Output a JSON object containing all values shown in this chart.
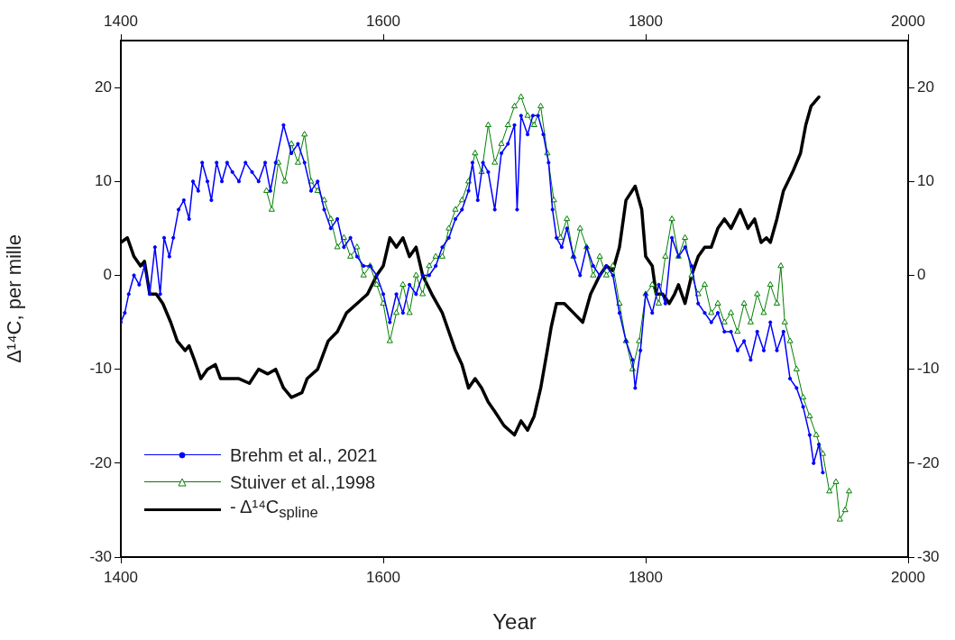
{
  "chart_data": {
    "type": "line",
    "xlabel": "Year",
    "ylabel": "Δ¹⁴C, per mille",
    "xlim": [
      1400,
      2000
    ],
    "xticks": [
      1400,
      1600,
      1800,
      2000
    ],
    "x2lim": [
      1400,
      2000
    ],
    "x2ticks": [
      1400,
      1600,
      1800,
      2000
    ],
    "ylim": [
      -30,
      25
    ],
    "yticks": [
      -30,
      -20,
      -10,
      0,
      10,
      20
    ],
    "y2lim": [
      -30,
      25
    ],
    "y2ticks": [
      -30,
      -20,
      -10,
      0,
      10,
      20
    ],
    "grid": false,
    "legend": "bottom left",
    "series": [
      {
        "name": "Brehm et al., 2021",
        "color": "#0000ff",
        "marker": "circle",
        "x": [
          1400,
          1403,
          1406,
          1410,
          1414,
          1418,
          1422,
          1426,
          1430,
          1433,
          1437,
          1440,
          1444,
          1448,
          1452,
          1455,
          1459,
          1462,
          1466,
          1469,
          1473,
          1477,
          1481,
          1485,
          1490,
          1495,
          1500,
          1505,
          1510,
          1514,
          1518,
          1524,
          1530,
          1535,
          1540,
          1545,
          1550,
          1555,
          1560,
          1565,
          1570,
          1575,
          1580,
          1585,
          1590,
          1595,
          1600,
          1605,
          1610,
          1615,
          1620,
          1625,
          1630,
          1635,
          1640,
          1645,
          1650,
          1655,
          1660,
          1665,
          1668,
          1672,
          1676,
          1680,
          1685,
          1690,
          1695,
          1700,
          1702,
          1705,
          1710,
          1714,
          1718,
          1722,
          1726,
          1729,
          1732,
          1736,
          1740,
          1745,
          1750,
          1755,
          1760,
          1765,
          1770,
          1775,
          1780,
          1785,
          1790,
          1792,
          1796,
          1800,
          1805,
          1810,
          1815,
          1820,
          1825,
          1830,
          1835,
          1840,
          1845,
          1850,
          1855,
          1860,
          1865,
          1870,
          1875,
          1880,
          1885,
          1890,
          1895,
          1900,
          1905,
          1910,
          1915,
          1920,
          1925,
          1928,
          1932,
          1935
        ],
        "values": [
          -5,
          -4,
          -2,
          0,
          -1,
          1,
          -2,
          3,
          -2,
          4,
          2,
          4,
          7,
          8,
          6,
          10,
          9,
          12,
          10,
          8,
          12,
          10,
          12,
          11,
          10,
          12,
          11,
          10,
          12,
          9,
          12,
          16,
          13,
          14,
          12,
          9,
          10,
          7,
          5,
          6,
          3,
          4,
          2,
          1,
          1,
          0,
          -2,
          -5,
          -2,
          -4,
          -1,
          -2,
          0,
          0,
          1,
          3,
          4,
          6,
          7,
          9,
          12,
          8,
          12,
          11,
          7,
          13,
          14,
          16,
          7,
          17,
          15,
          17,
          17,
          15,
          12,
          7,
          4,
          3,
          5,
          2,
          0,
          3,
          1,
          0,
          1,
          0,
          -4,
          -7,
          -9,
          -12,
          -8,
          -2,
          -4,
          -1,
          -3,
          4,
          2,
          3,
          1,
          -3,
          -4,
          -5,
          -4,
          -6,
          -6,
          -8,
          -7,
          -9,
          -6,
          -8,
          -5,
          -8,
          -6,
          -11,
          -12,
          -14,
          -17,
          -20,
          -18,
          -21
        ]
      },
      {
        "name": "Stuiver et al.,1998",
        "color": "#008000",
        "marker": "triangle",
        "x": [
          1511,
          1515,
          1520,
          1525,
          1530,
          1535,
          1540,
          1545,
          1550,
          1555,
          1560,
          1565,
          1570,
          1575,
          1580,
          1585,
          1590,
          1595,
          1600,
          1605,
          1610,
          1615,
          1620,
          1625,
          1630,
          1635,
          1640,
          1645,
          1650,
          1655,
          1660,
          1665,
          1670,
          1675,
          1680,
          1685,
          1690,
          1695,
          1700,
          1705,
          1710,
          1715,
          1720,
          1725,
          1730,
          1735,
          1740,
          1745,
          1750,
          1755,
          1760,
          1765,
          1770,
          1775,
          1780,
          1785,
          1790,
          1795,
          1800,
          1805,
          1810,
          1815,
          1820,
          1825,
          1830,
          1835,
          1840,
          1845,
          1850,
          1855,
          1860,
          1865,
          1870,
          1875,
          1880,
          1885,
          1890,
          1895,
          1900,
          1903,
          1906,
          1910,
          1915,
          1920,
          1925,
          1930,
          1935,
          1940,
          1945,
          1948,
          1952,
          1955
        ],
        "values": [
          9,
          7,
          12,
          10,
          14,
          12,
          15,
          10,
          9,
          8,
          6,
          3,
          4,
          2,
          3,
          0,
          1,
          -1,
          -3,
          -7,
          -4,
          -1,
          -4,
          0,
          -2,
          1,
          2,
          2,
          5,
          7,
          8,
          10,
          13,
          11,
          16,
          12,
          14,
          16,
          18,
          19,
          17,
          16,
          18,
          13,
          8,
          4,
          6,
          2,
          5,
          3,
          0,
          2,
          0,
          1,
          -3,
          -7,
          -10,
          -7,
          -2,
          -1,
          -3,
          2,
          6,
          2,
          4,
          0,
          -2,
          -1,
          -4,
          -3,
          -5,
          -4,
          -6,
          -3,
          -5,
          -2,
          -4,
          -1,
          -3,
          1,
          -5,
          -7,
          -10,
          -13,
          -15,
          -17,
          -19,
          -23,
          -22,
          -26,
          -25,
          -23
        ]
      },
      {
        "name": "- Δ¹⁴C$_{spline}$",
        "color": "#000000",
        "marker": "none",
        "x": [
          1400,
          1405,
          1410,
          1415,
          1418,
          1422,
          1427,
          1432,
          1438,
          1443,
          1449,
          1452,
          1456,
          1461,
          1466,
          1472,
          1476,
          1482,
          1490,
          1498,
          1505,
          1512,
          1518,
          1524,
          1530,
          1538,
          1542,
          1550,
          1558,
          1565,
          1572,
          1580,
          1588,
          1595,
          1600,
          1605,
          1610,
          1615,
          1620,
          1625,
          1630,
          1637,
          1645,
          1650,
          1655,
          1660,
          1665,
          1670,
          1675,
          1680,
          1685,
          1692,
          1700,
          1705,
          1710,
          1715,
          1720,
          1725,
          1728,
          1732,
          1738,
          1745,
          1752,
          1758,
          1765,
          1770,
          1775,
          1780,
          1785,
          1792,
          1797,
          1800,
          1805,
          1808,
          1813,
          1818,
          1822,
          1825,
          1830,
          1835,
          1840,
          1845,
          1850,
          1855,
          1860,
          1865,
          1872,
          1878,
          1883,
          1888,
          1892,
          1895,
          1900,
          1905,
          1912,
          1918,
          1922,
          1926,
          1932
        ],
        "values": [
          3.5,
          4,
          2,
          1,
          1.5,
          -2,
          -2,
          -3,
          -5,
          -7,
          -8,
          -7.5,
          -9,
          -11,
          -10,
          -9.5,
          -11,
          -11,
          -11,
          -11.5,
          -10,
          -10.5,
          -10,
          -12,
          -13,
          -12.5,
          -11,
          -10,
          -7,
          -6,
          -4,
          -3,
          -2,
          0,
          1,
          4,
          3,
          4,
          2,
          3,
          0,
          -2,
          -4,
          -6,
          -8,
          -9.5,
          -12,
          -11,
          -12,
          -13.5,
          -14.5,
          -16,
          -17,
          -15.5,
          -16.5,
          -15,
          -12,
          -8,
          -5.5,
          -3,
          -3,
          -4,
          -5,
          -2,
          0,
          1,
          0.5,
          3,
          8,
          9.5,
          7,
          2,
          1,
          -2,
          -2,
          -3,
          -2,
          -1,
          -3,
          0,
          2,
          3,
          3,
          5,
          6,
          5,
          7,
          5,
          6,
          3.5,
          4,
          3.5,
          6,
          9,
          11,
          13,
          16,
          18,
          19
        ]
      }
    ]
  }
}
